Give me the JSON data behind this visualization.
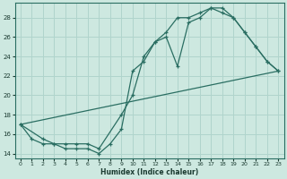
{
  "xlabel": "Humidex (Indice chaleur)",
  "xlim": [
    -0.5,
    23.5
  ],
  "ylim": [
    13.5,
    29.5
  ],
  "xticks": [
    0,
    1,
    2,
    3,
    4,
    5,
    6,
    7,
    8,
    9,
    10,
    11,
    12,
    13,
    14,
    15,
    16,
    17,
    18,
    19,
    20,
    21,
    22,
    23
  ],
  "yticks": [
    14,
    16,
    18,
    20,
    22,
    24,
    26,
    28
  ],
  "background_color": "#cde8e0",
  "line_color": "#2a6e62",
  "grid_color": "#b0d4cc",
  "line1_x": [
    0,
    1,
    2,
    3,
    4,
    5,
    6,
    7,
    8,
    9,
    10,
    11,
    12,
    13,
    14,
    15,
    16,
    17,
    18,
    19,
    20,
    21,
    22,
    23
  ],
  "line1_y": [
    17,
    15.5,
    15,
    15,
    14.5,
    14.5,
    14.5,
    14,
    15,
    16.5,
    22.5,
    23.5,
    25.5,
    26,
    23,
    27.5,
    28,
    29,
    28.5,
    28,
    26.5,
    25,
    23.5,
    22.5
  ],
  "line2_x": [
    0,
    2,
    3,
    4,
    5,
    6,
    7,
    9,
    10,
    11,
    12,
    13,
    14,
    15,
    16,
    17,
    18,
    19,
    20,
    21,
    22,
    23
  ],
  "line2_y": [
    17,
    15.5,
    15,
    15,
    15,
    15,
    14.5,
    18,
    20,
    24,
    25.5,
    26.5,
    28,
    28,
    28.5,
    29,
    29,
    28,
    26.5,
    25,
    23.5,
    22.5
  ],
  "line3_x": [
    0,
    23
  ],
  "line3_y": [
    17,
    22.5
  ]
}
